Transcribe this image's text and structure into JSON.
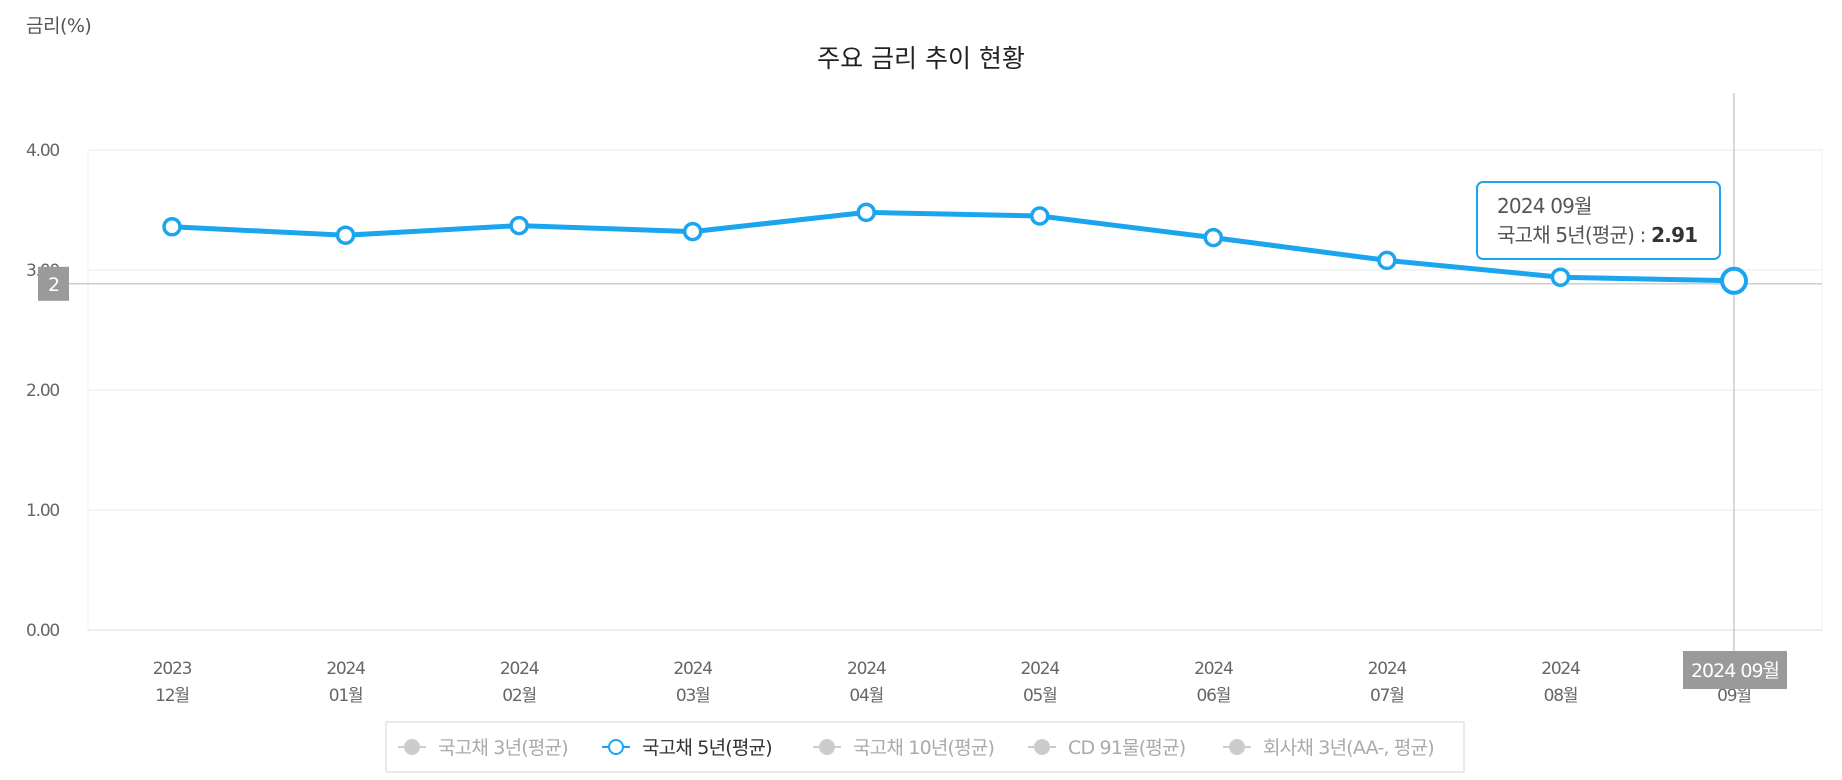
{
  "chart_data": {
    "type": "line",
    "title": "주요 금리 추이 현황",
    "ylabel": "금리(%)",
    "xlabel": "",
    "ylim": [
      0,
      4
    ],
    "y_ticks": [
      "4.00",
      "3.00",
      "2.00",
      "1.00",
      "0.00"
    ],
    "categories": [
      [
        "2023",
        "12월"
      ],
      [
        "2024",
        "01월"
      ],
      [
        "2024",
        "02월"
      ],
      [
        "2024",
        "03월"
      ],
      [
        "2024",
        "04월"
      ],
      [
        "2024",
        "05월"
      ],
      [
        "2024",
        "06월"
      ],
      [
        "2024",
        "07월"
      ],
      [
        "2024",
        "08월"
      ],
      [
        "2024",
        "09월"
      ]
    ],
    "series": [
      {
        "name": "국고채 3년(평균)",
        "visible": false,
        "color": "#cccccc"
      },
      {
        "name": "국고채 5년(평균)",
        "visible": true,
        "color": "#1ba5ee",
        "values": [
          3.36,
          3.29,
          3.37,
          3.32,
          3.48,
          3.45,
          3.27,
          3.08,
          2.94,
          2.91
        ]
      },
      {
        "name": "국고채 10년(평균)",
        "visible": false,
        "color": "#cccccc"
      },
      {
        "name": "CD 91물(평균)",
        "visible": false,
        "color": "#cccccc"
      },
      {
        "name": "회사채 3년(AA-, 평균)",
        "visible": false,
        "color": "#cccccc"
      }
    ],
    "grid": true,
    "legend_position": "bottom-center",
    "crosshair": {
      "y_badge": "2",
      "x_badge": "2024 09월",
      "index": 9
    },
    "tooltip": {
      "header": "2024 09월",
      "series_label": "국고채 5년(평균) : ",
      "value": "2.91"
    }
  }
}
